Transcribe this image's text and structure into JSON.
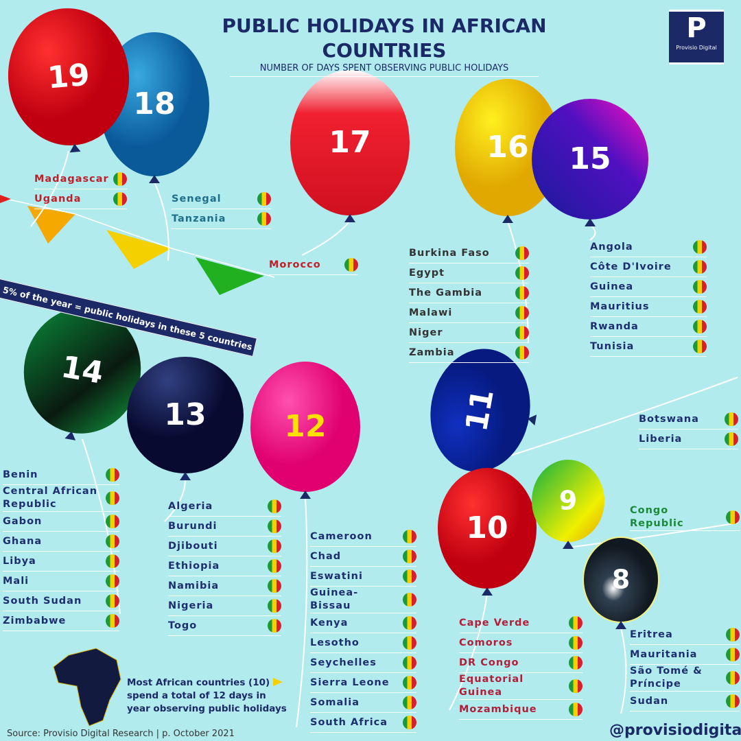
{
  "header": {
    "title": "PUBLIC HOLIDAYS IN AFRICAN COUNTRIES",
    "subtitle": "NUMBER OF DAYS SPENT OBSERVING PUBLIC HOLIDAYS"
  },
  "logo": {
    "mark": "P",
    "name": "Provisio Digital"
  },
  "banner": "5% of the year = public holidays in these 5 countries",
  "groups": [
    {
      "days": 19,
      "countries": [
        "Madagascar",
        "Uganda"
      ]
    },
    {
      "days": 18,
      "countries": [
        "Senegal",
        "Tanzania"
      ]
    },
    {
      "days": 17,
      "countries": [
        "Morocco"
      ]
    },
    {
      "days": 16,
      "countries": [
        "Burkina Faso",
        "Egypt",
        "The Gambia",
        "Malawi",
        "Niger",
        "Zambia"
      ]
    },
    {
      "days": 15,
      "countries": [
        "Angola",
        "Côte D'Ivoire",
        "Guinea",
        "Mauritius",
        "Rwanda",
        "Tunisia"
      ]
    },
    {
      "days": 14,
      "countries": [
        "Benin",
        "Central African Republic",
        "Gabon",
        "Ghana",
        "Libya",
        "Mali",
        "South Sudan",
        "Zimbabwe"
      ]
    },
    {
      "days": 13,
      "countries": [
        "Algeria",
        "Burundi",
        "Djibouti",
        "Ethiopia",
        "Namibia",
        "Nigeria",
        "Togo"
      ]
    },
    {
      "days": 12,
      "countries": [
        "Cameroon",
        "Chad",
        "Eswatini",
        "Guinea-Bissau",
        "Kenya",
        "Lesotho",
        "Seychelles",
        "Sierra Leone",
        "Somalia",
        "South Africa"
      ]
    },
    {
      "days": 11,
      "countries": [
        "Botswana",
        "Liberia"
      ]
    },
    {
      "days": 10,
      "countries": [
        "Cape Verde",
        "Comoros",
        "DR Congo",
        "Equatorial Guinea",
        "Mozambique"
      ]
    },
    {
      "days": 9,
      "countries": [
        "Congo Republic"
      ]
    },
    {
      "days": 8,
      "countries": [
        "Eritrea",
        "Mauritania",
        "São Tomé & Príncipe",
        "Sudan"
      ]
    }
  ],
  "note": "Most African countries (10) spend a total of 12 days in year observing public holidays",
  "source": "Source: Provisio Digital Research | p. October 2021",
  "handle": "@provisiodigital"
}
